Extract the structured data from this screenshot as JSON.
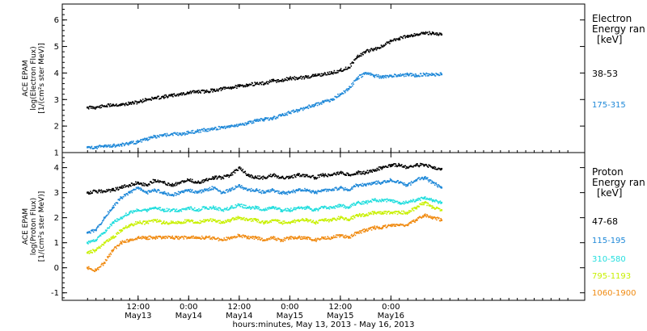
{
  "chart_data": [
    {
      "type": "scatter",
      "panel": "electron",
      "ylabel_lines": [
        "ACE EPAM",
        "log(Electron Flux)",
        "[1/(cm²s ster MeV)]"
      ],
      "ylim": [
        1,
        6.6
      ],
      "yticks": [
        1,
        2,
        3,
        4,
        5,
        6
      ],
      "legend_title": [
        "Electron",
        "Energy ran",
        "[keV]"
      ],
      "series": [
        {
          "name": "38-53",
          "color": "#000000",
          "x": [
            0,
            2,
            4,
            6,
            8,
            10,
            12,
            14,
            16,
            18,
            20,
            22,
            24,
            26,
            28,
            30,
            32,
            34,
            36,
            38,
            40,
            42,
            44,
            46,
            48,
            50,
            52,
            54,
            56,
            58,
            60,
            62,
            64,
            66,
            68,
            70,
            72,
            74,
            76,
            78,
            80,
            82,
            84
          ],
          "y": [
            2.7,
            2.7,
            2.75,
            2.8,
            2.8,
            2.85,
            2.9,
            3.0,
            3.05,
            3.1,
            3.15,
            3.2,
            3.25,
            3.3,
            3.3,
            3.35,
            3.4,
            3.45,
            3.5,
            3.55,
            3.6,
            3.6,
            3.7,
            3.7,
            3.8,
            3.8,
            3.85,
            3.9,
            3.95,
            4.0,
            4.1,
            4.2,
            4.6,
            4.8,
            4.9,
            5.0,
            5.2,
            5.3,
            5.4,
            5.45,
            5.5,
            5.5,
            5.45
          ]
        },
        {
          "name": "175-315",
          "color": "#1e88d8",
          "x": [
            0,
            2,
            4,
            6,
            8,
            10,
            12,
            14,
            16,
            18,
            20,
            22,
            24,
            26,
            28,
            30,
            32,
            34,
            36,
            38,
            40,
            42,
            44,
            46,
            48,
            50,
            52,
            54,
            56,
            58,
            60,
            62,
            64,
            66,
            68,
            70,
            72,
            74,
            76,
            78,
            80,
            82,
            84
          ],
          "y": [
            1.2,
            1.2,
            1.25,
            1.25,
            1.3,
            1.35,
            1.4,
            1.5,
            1.6,
            1.65,
            1.7,
            1.7,
            1.75,
            1.8,
            1.85,
            1.9,
            1.95,
            2.0,
            2.05,
            2.1,
            2.2,
            2.25,
            2.3,
            2.4,
            2.5,
            2.6,
            2.7,
            2.8,
            2.9,
            3.0,
            3.2,
            3.4,
            3.8,
            4.0,
            3.9,
            3.85,
            3.9,
            3.9,
            3.95,
            3.9,
            3.95,
            3.95,
            3.95
          ]
        }
      ]
    },
    {
      "type": "scatter",
      "panel": "proton",
      "ylabel_lines": [
        "ACE EPAM",
        "log(Proton Flux)",
        "[1/(cm²s ster MeV)]"
      ],
      "ylim": [
        -1.3,
        4.6
      ],
      "yticks": [
        -1,
        0,
        1,
        2,
        3,
        4
      ],
      "legend_title": [
        "Proton",
        "Energy ran",
        "[keV]"
      ],
      "series": [
        {
          "name": "47-68",
          "color": "#000000",
          "x": [
            0,
            2,
            4,
            6,
            8,
            10,
            12,
            14,
            16,
            18,
            20,
            22,
            24,
            26,
            28,
            30,
            32,
            34,
            36,
            38,
            40,
            42,
            44,
            46,
            48,
            50,
            52,
            54,
            56,
            58,
            60,
            62,
            64,
            66,
            68,
            70,
            72,
            74,
            76,
            78,
            80,
            82,
            84
          ],
          "y": [
            3.0,
            3.05,
            3.05,
            3.1,
            3.2,
            3.3,
            3.4,
            3.3,
            3.5,
            3.4,
            3.3,
            3.4,
            3.5,
            3.4,
            3.5,
            3.6,
            3.6,
            3.7,
            4.0,
            3.7,
            3.6,
            3.6,
            3.7,
            3.6,
            3.6,
            3.7,
            3.7,
            3.6,
            3.7,
            3.7,
            3.8,
            3.7,
            3.8,
            3.8,
            3.9,
            4.0,
            4.1,
            4.1,
            4.0,
            4.1,
            4.1,
            4.0,
            3.95
          ]
        },
        {
          "name": "115-195",
          "color": "#1e88d8",
          "x": [
            0,
            2,
            4,
            6,
            8,
            10,
            12,
            14,
            16,
            18,
            20,
            22,
            24,
            26,
            28,
            30,
            32,
            34,
            36,
            38,
            40,
            42,
            44,
            46,
            48,
            50,
            52,
            54,
            56,
            58,
            60,
            62,
            64,
            66,
            68,
            70,
            72,
            74,
            76,
            78,
            80,
            82,
            84
          ],
          "y": [
            1.4,
            1.5,
            2.0,
            2.4,
            2.8,
            3.0,
            3.2,
            3.0,
            3.1,
            3.0,
            2.9,
            3.0,
            3.1,
            3.0,
            3.1,
            3.2,
            3.0,
            3.1,
            3.3,
            3.1,
            3.1,
            3.0,
            3.1,
            3.0,
            3.0,
            3.1,
            3.1,
            3.0,
            3.1,
            3.1,
            3.2,
            3.1,
            3.3,
            3.3,
            3.4,
            3.4,
            3.5,
            3.4,
            3.3,
            3.5,
            3.6,
            3.4,
            3.2
          ]
        },
        {
          "name": "310-580",
          "color": "#22dede",
          "x": [
            0,
            2,
            4,
            6,
            8,
            10,
            12,
            14,
            16,
            18,
            20,
            22,
            24,
            26,
            28,
            30,
            32,
            34,
            36,
            38,
            40,
            42,
            44,
            46,
            48,
            50,
            52,
            54,
            56,
            58,
            60,
            62,
            64,
            66,
            68,
            70,
            72,
            74,
            76,
            78,
            80,
            82,
            84
          ],
          "y": [
            1.0,
            1.1,
            1.4,
            1.8,
            2.0,
            2.2,
            2.3,
            2.3,
            2.4,
            2.3,
            2.3,
            2.3,
            2.4,
            2.3,
            2.4,
            2.4,
            2.3,
            2.4,
            2.5,
            2.4,
            2.4,
            2.3,
            2.4,
            2.3,
            2.3,
            2.4,
            2.4,
            2.3,
            2.4,
            2.4,
            2.5,
            2.4,
            2.6,
            2.6,
            2.7,
            2.7,
            2.7,
            2.6,
            2.6,
            2.7,
            2.8,
            2.7,
            2.6
          ]
        },
        {
          "name": "795-1193",
          "color": "#c8f000",
          "x": [
            0,
            2,
            4,
            6,
            8,
            10,
            12,
            14,
            16,
            18,
            20,
            22,
            24,
            26,
            28,
            30,
            32,
            34,
            36,
            38,
            40,
            42,
            44,
            46,
            48,
            50,
            52,
            54,
            56,
            58,
            60,
            62,
            64,
            66,
            68,
            70,
            72,
            74,
            76,
            78,
            80,
            82,
            84
          ],
          "y": [
            0.6,
            0.7,
            1.0,
            1.2,
            1.5,
            1.7,
            1.8,
            1.8,
            1.9,
            1.8,
            1.8,
            1.8,
            1.9,
            1.8,
            1.9,
            1.9,
            1.8,
            1.9,
            2.0,
            1.9,
            1.9,
            1.8,
            1.9,
            1.8,
            1.8,
            1.9,
            1.9,
            1.8,
            1.9,
            1.9,
            2.0,
            1.9,
            2.1,
            2.1,
            2.2,
            2.2,
            2.2,
            2.2,
            2.2,
            2.4,
            2.6,
            2.4,
            2.3
          ]
        },
        {
          "name": "1060-1900",
          "color": "#f08a10",
          "x": [
            0,
            2,
            4,
            6,
            8,
            10,
            12,
            14,
            16,
            18,
            20,
            22,
            24,
            26,
            28,
            30,
            32,
            34,
            36,
            38,
            40,
            42,
            44,
            46,
            48,
            50,
            52,
            54,
            56,
            58,
            60,
            62,
            64,
            66,
            68,
            70,
            72,
            74,
            76,
            78,
            80,
            82,
            84
          ],
          "y": [
            0.0,
            -0.1,
            0.2,
            0.7,
            1.0,
            1.1,
            1.2,
            1.2,
            1.2,
            1.2,
            1.2,
            1.2,
            1.2,
            1.2,
            1.2,
            1.2,
            1.1,
            1.2,
            1.3,
            1.2,
            1.2,
            1.1,
            1.2,
            1.1,
            1.2,
            1.2,
            1.2,
            1.1,
            1.2,
            1.2,
            1.3,
            1.2,
            1.4,
            1.5,
            1.6,
            1.6,
            1.7,
            1.7,
            1.7,
            1.9,
            2.1,
            2.0,
            1.9
          ]
        }
      ]
    }
  ],
  "xaxis": {
    "xlim": [
      -6,
      118
    ],
    "ticks": [
      {
        "x": 12,
        "top": "12:00",
        "bottom": "May13"
      },
      {
        "x": 24,
        "top": "0:00",
        "bottom": "May14"
      },
      {
        "x": 36,
        "top": "12:00",
        "bottom": "May14"
      },
      {
        "x": 48,
        "top": "0:00",
        "bottom": "May15"
      },
      {
        "x": 60,
        "top": "12:00",
        "bottom": "May15"
      },
      {
        "x": 72,
        "top": "0:00",
        "bottom": "May16"
      }
    ],
    "label": "hours:minutes, May 13, 2013 - May 16, 2013"
  }
}
